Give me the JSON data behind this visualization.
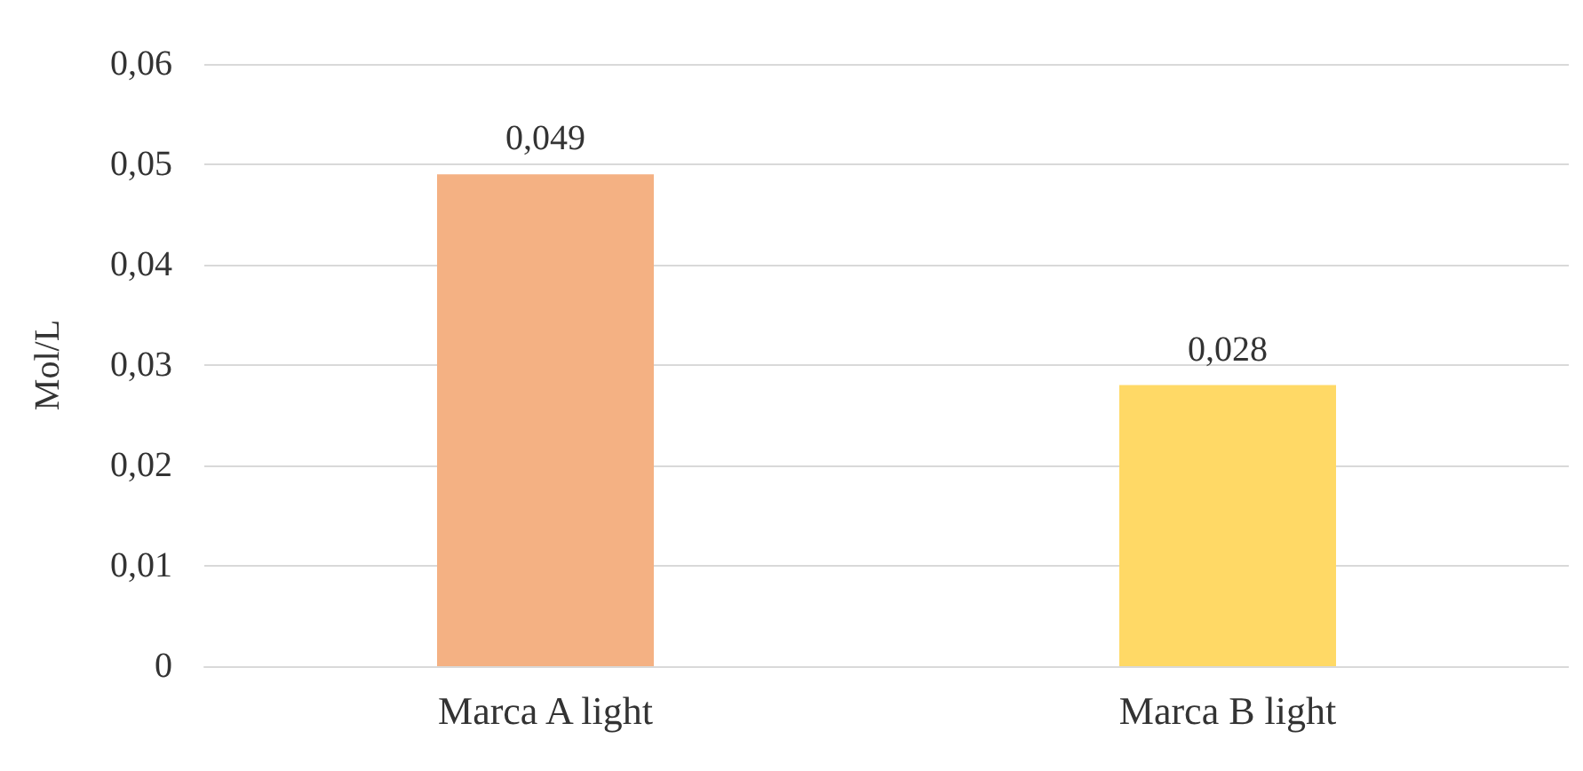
{
  "chart_data": {
    "type": "bar",
    "ylabel": "Mol/L",
    "categories": [
      "Marca A light",
      "Marca B light"
    ],
    "values": [
      0.049,
      0.028
    ],
    "colors": [
      "#f4b183",
      "#ffd966"
    ],
    "value_labels": [
      "0,049",
      "0,028"
    ],
    "ylim": [
      0,
      0.06
    ],
    "yticks": [
      0,
      {
        "value": 0.01,
        "label": "0,01"
      },
      {
        "value": 0.02,
        "label": "0,02"
      },
      {
        "value": 0.03,
        "label": "0,03"
      },
      {
        "value": 0.04,
        "label": "0,04"
      },
      {
        "value": 0.05,
        "label": "0,05"
      },
      {
        "value": 0.06,
        "label": "0,06"
      }
    ],
    "grid": "y"
  }
}
